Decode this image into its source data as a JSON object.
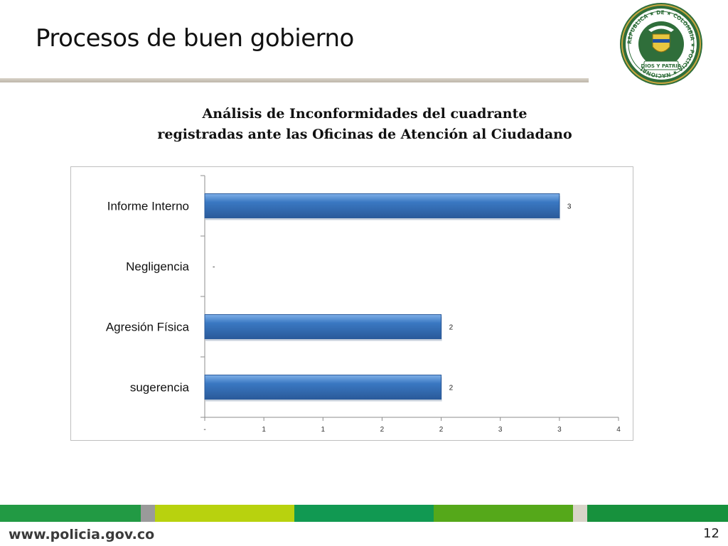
{
  "slide": {
    "title": "Procesos de buen gobierno",
    "footer_url": "www.policia.gov.co",
    "page_number": "12"
  },
  "seal": {
    "ring_text": "REPUBLICA ★ DE ★ COLOMBIA ★ POLICIA ★ NACIONAL",
    "motto": "DIOS Y PATRIA"
  },
  "chart_heading": {
    "line1": "Análisis de Inconformidades del cuadrante",
    "line2": "registradas ante las Oficinas de Atención al Ciudadano"
  },
  "colors": {
    "bar": "#3a78c2",
    "bar_dark": "#2a5a9a",
    "footer": [
      "#229a44",
      "#9a9a9a",
      "#b8d20e",
      "#119952",
      "#55a81a",
      "#d8d4c8",
      "#17913d"
    ]
  },
  "chart_data": {
    "type": "bar",
    "orientation": "horizontal",
    "categories": [
      "Informe Interno",
      "Negligencia",
      "Agresión Física",
      "sugerencia"
    ],
    "values": [
      3,
      0,
      2,
      2
    ],
    "data_labels": [
      "3",
      "-",
      "2",
      "2"
    ],
    "xlim": [
      0,
      3.5
    ],
    "x_ticks": [
      0,
      0.5,
      1,
      1.5,
      2,
      2.5,
      3,
      3.5
    ],
    "x_tick_labels": [
      "-",
      "1",
      "1",
      "2",
      "2",
      "3",
      "3",
      "4"
    ],
    "grid": false,
    "legend": "none"
  }
}
